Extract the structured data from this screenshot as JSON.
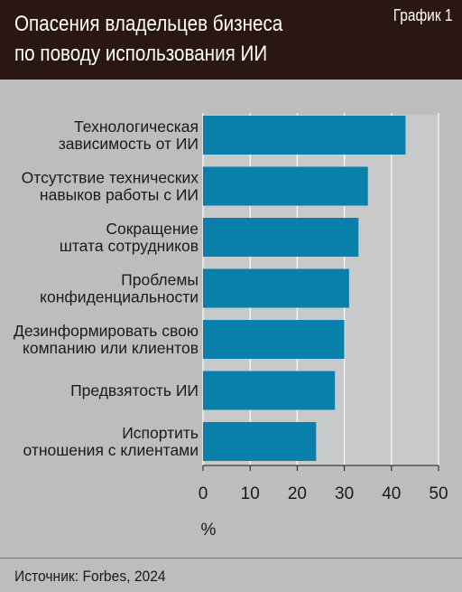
{
  "header": {
    "title_lines": [
      "Опасения владельцев бизнеса",
      "по поводу использования ИИ"
    ],
    "graph_label": "График 1"
  },
  "colors": {
    "header_bg": "#2a1712",
    "background": "#bcbdbf",
    "bar": "#0880a9"
  },
  "chart_data": {
    "type": "bar",
    "orientation": "horizontal",
    "title": "Опасения владельцев бизнеса по поводу использования ИИ",
    "categories": [
      [
        "Технологическая",
        "зависимость от ИИ"
      ],
      [
        "Отсутствие технических",
        "навыков работы с ИИ"
      ],
      [
        "Сокращение",
        "штата сотрудников"
      ],
      [
        "Проблемы",
        "конфиденциальности"
      ],
      [
        "Дезинформировать свою",
        "компанию или клиентов"
      ],
      [
        "Предвзятость ИИ"
      ],
      [
        "Испортить",
        "отношения с клиентами"
      ]
    ],
    "values": [
      43,
      35,
      33,
      31,
      30,
      28,
      24
    ],
    "xlim": [
      0,
      50
    ],
    "xticks": [
      "0",
      "10",
      "20",
      "30",
      "40",
      "50"
    ],
    "xlabel": "%",
    "ylabel": "",
    "grid": true
  },
  "footer": {
    "source": "Источник: Forbes, 2024"
  }
}
